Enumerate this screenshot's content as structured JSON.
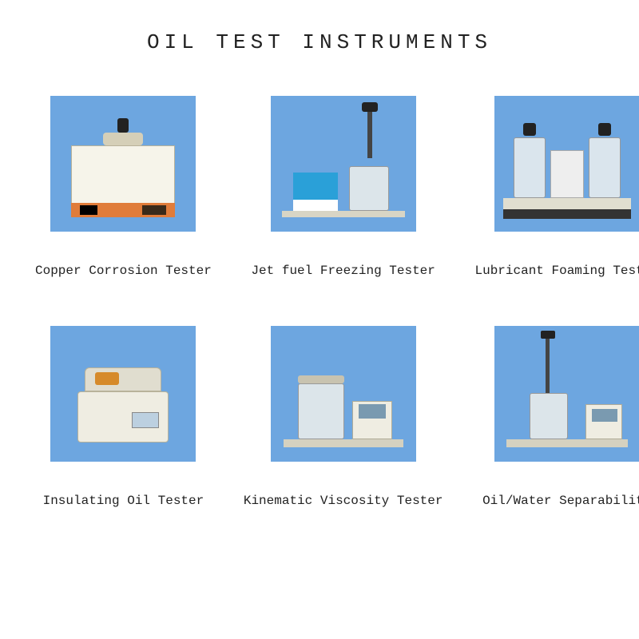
{
  "title": "OIL TEST INSTRUMENTS",
  "thumb_bg": "#6da6e0",
  "text_color": "#222222",
  "grid": {
    "columns": 3,
    "row_gap": 60,
    "col_gap": 40
  },
  "products": [
    {
      "label": "Copper Corrosion Tester",
      "kind": "cct"
    },
    {
      "label": "Jet fuel Freezing Tester",
      "kind": "jft"
    },
    {
      "label": "Lubricant Foaming Tester",
      "kind": "lft"
    },
    {
      "label": "Insulating Oil Tester",
      "kind": "iot"
    },
    {
      "label": "Kinematic Viscosity Tester",
      "kind": "kvt"
    },
    {
      "label": "Oil/Water Separability",
      "kind": "ows"
    }
  ]
}
